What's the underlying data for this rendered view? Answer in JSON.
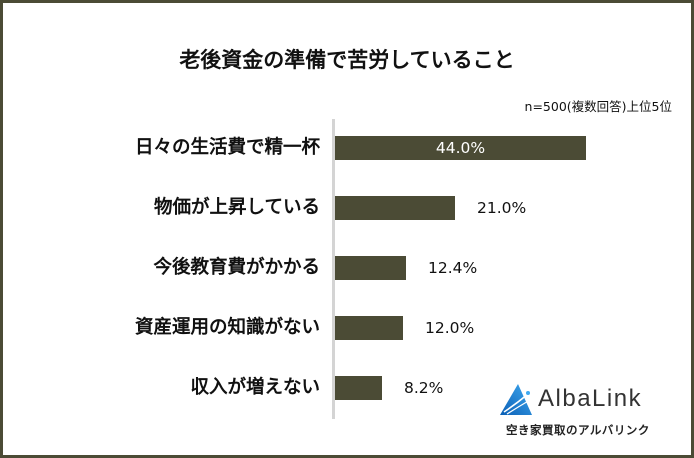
{
  "title": "老後資金の準備で苦労していること",
  "note": "n=500(複数回答)上位5位",
  "colors": {
    "bar": "#4b4b35",
    "frame": "#4b4b35",
    "axis": "#d4d4d4",
    "logo_blue": "#1e7fd0"
  },
  "chart_data": {
    "type": "bar",
    "orientation": "horizontal",
    "title": "老後資金の準備で苦労していること",
    "subtitle": "n=500(複数回答)上位5位",
    "categories": [
      "日々の生活費で精一杯",
      "物価が上昇している",
      "今後教育費がかかる",
      "資産運用の知識がない",
      "収入が増えない"
    ],
    "values": [
      44.0,
      21.0,
      12.4,
      12.0,
      8.2
    ],
    "value_labels": [
      "44.0%",
      "21.0%",
      "12.4%",
      "12.0%",
      "8.2%"
    ],
    "unit": "%",
    "xlabel": "",
    "ylabel": "",
    "grid": false,
    "legend": null
  },
  "rows": [
    {
      "label": "日々の生活費で精一杯",
      "value_label": "44.0%"
    },
    {
      "label": "物価が上昇している",
      "value_label": "21.0%"
    },
    {
      "label": "今後教育費がかかる",
      "value_label": "12.4%"
    },
    {
      "label": "資産運用の知識がない",
      "value_label": "12.0%"
    },
    {
      "label": "収入が増えない",
      "value_label": "8.2%"
    }
  ],
  "logo": {
    "name": "AlbaLink",
    "tagline": "空き家買取のアルバリンク",
    "icon": "triangle-logo-icon"
  }
}
